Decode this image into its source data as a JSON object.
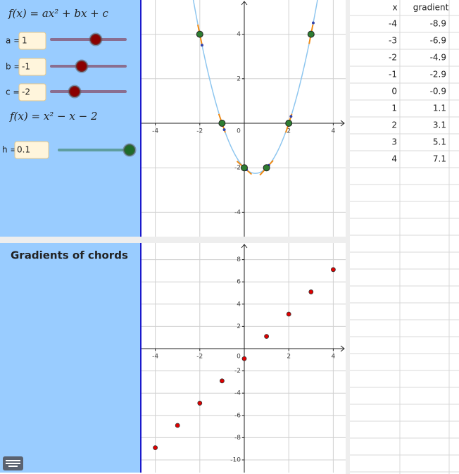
{
  "left_panel": {
    "general_formula": "f(x) = ax² + bx + c",
    "sliders": [
      {
        "label": "a =",
        "value": 1
      },
      {
        "label": "b =",
        "value": -1
      },
      {
        "label": "c =",
        "value": -2
      }
    ],
    "formula": "f(x) = x² − x − 2",
    "h_slider": {
      "label": "h =",
      "value": 0.1
    },
    "lower_title": "Gradients of chords"
  },
  "function_graph": {
    "xticks": [
      -4,
      -2,
      2,
      4
    ],
    "yticks": [
      -4,
      -2,
      2,
      4
    ],
    "origin_label": 0
  },
  "gradient_graph": {
    "xticks": [
      -4,
      -2,
      2,
      4
    ],
    "yticks": [
      -10,
      -8,
      -6,
      -4,
      -2,
      2,
      4,
      6,
      8
    ],
    "origin_label": 0
  },
  "spreadsheet": {
    "columns": [
      "x",
      "gradient"
    ],
    "rows": [
      [
        -4,
        -8.9
      ],
      [
        -3,
        -6.9
      ],
      [
        -2,
        -4.9
      ],
      [
        -1,
        -2.9
      ],
      [
        0,
        -0.9
      ],
      [
        1,
        1.1
      ],
      [
        2,
        3.1
      ],
      [
        3,
        5.1
      ],
      [
        4,
        7.1
      ]
    ]
  }
}
